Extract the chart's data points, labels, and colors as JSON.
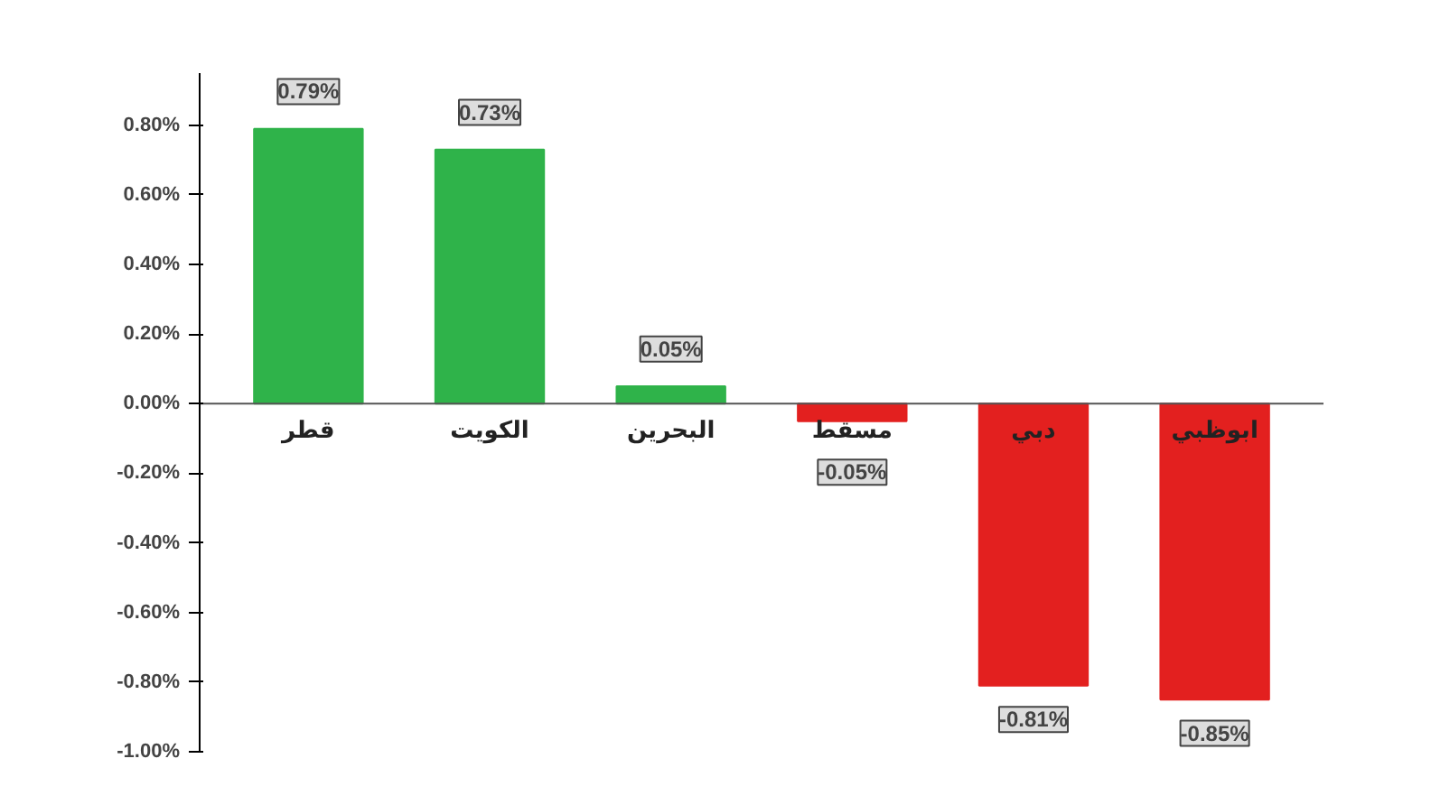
{
  "chart_data": {
    "type": "bar",
    "categories": [
      "قطر",
      "الكويت",
      "البحرين",
      "مسقط",
      "دبي",
      "ابوظبي"
    ],
    "values": [
      0.79,
      0.73,
      0.05,
      -0.05,
      -0.81,
      -0.85
    ],
    "colors": [
      "#2fb34a",
      "#2fb34a",
      "#2fb34a",
      "#e3201f",
      "#e3201f",
      "#e3201f"
    ],
    "value_labels": [
      "0.79%",
      "0.73%",
      "0.05%",
      "-0.05%",
      "-0.81%",
      "-0.85%"
    ],
    "ylim": [
      -1.0,
      0.95
    ],
    "yticks": [
      {
        "value": -1.0,
        "label": "-1.00%"
      },
      {
        "value": -0.8,
        "label": "-0.80%"
      },
      {
        "value": -0.6,
        "label": "-0.60%"
      },
      {
        "value": -0.4,
        "label": "-0.40%"
      },
      {
        "value": -0.2,
        "label": "-0.20%"
      },
      {
        "value": 0,
        "label": "0.00%"
      },
      {
        "value": 0.2,
        "label": "0.20%"
      },
      {
        "value": 0.4,
        "label": "0.40%"
      },
      {
        "value": 0.6,
        "label": "0.60%"
      },
      {
        "value": 0.8,
        "label": "0.80%"
      }
    ],
    "grid": false
  }
}
